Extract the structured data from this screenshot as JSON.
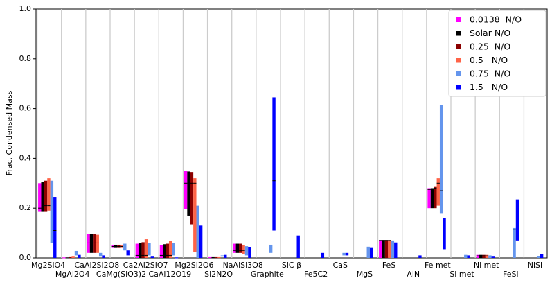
{
  "chart_data": {
    "type": "floating-bar",
    "ylabel": "Frac. Condensed Mass",
    "categories": [
      "Mg2SiO4",
      "MgAl2O4",
      "CaAl2Si2O8",
      "CaMg(SiO3)2",
      "Ca2Al2SiO7",
      "CaAl12O19",
      "Mg2Si2O6",
      "Si2N2O",
      "NaAlSi3O8",
      "Graphite",
      "SiC β",
      "Fe5C2",
      "CaS",
      "MgS",
      "FeS",
      "AlN",
      "Fe met",
      "Si met",
      "Ni met",
      "FeSi",
      "NiSi"
    ],
    "ylim": [
      0,
      1.0
    ],
    "yticks": [
      {
        "value": 0,
        "label": "0.0"
      },
      {
        "value": 0.2,
        "label": "0.2"
      },
      {
        "value": 0.4,
        "label": "0.4"
      },
      {
        "value": 0.6,
        "label": "0.6"
      },
      {
        "value": 0.8,
        "label": "0.8"
      },
      {
        "value": 1.0,
        "label": "1.0"
      }
    ],
    "grid": true,
    "legend": "upper right",
    "series": [
      {
        "name": "0.0138  N/O",
        "color": "#ff00ff",
        "low": [
          0.185,
          0,
          0.02,
          0.04,
          0,
          0,
          0.195,
          0,
          0.02,
          null,
          null,
          null,
          null,
          null,
          0,
          null,
          0.2,
          null,
          0,
          null,
          null
        ],
        "high": [
          0.3,
          0.002,
          0.097,
          0.053,
          0.057,
          0.052,
          0.35,
          0.003,
          0.057,
          null,
          null,
          null,
          null,
          null,
          0.072,
          null,
          0.28,
          null,
          0.012,
          null,
          null
        ],
        "mid": [
          0.2,
          null,
          0.06,
          0.046,
          0.01,
          0.01,
          0.3,
          null,
          0.03,
          null,
          null,
          null,
          null,
          null,
          0.07,
          null,
          0.275,
          null,
          0.008,
          null,
          null
        ]
      },
      {
        "name": "Solar N/O",
        "color": "#000000",
        "low": [
          0.185,
          0,
          0.02,
          0.04,
          0,
          0,
          0.17,
          0,
          0.02,
          null,
          null,
          null,
          null,
          null,
          0,
          null,
          0.2,
          null,
          0,
          null,
          null
        ],
        "high": [
          0.305,
          0.002,
          0.097,
          0.053,
          0.06,
          0.055,
          0.347,
          0.003,
          0.057,
          null,
          null,
          null,
          null,
          null,
          0.072,
          null,
          0.28,
          null,
          0.012,
          null,
          null
        ],
        "mid": [
          0.2,
          null,
          0.06,
          0.046,
          0.01,
          0.01,
          0.3,
          null,
          0.03,
          null,
          null,
          null,
          null,
          null,
          0.07,
          null,
          0.275,
          null,
          0.008,
          null,
          null
        ]
      },
      {
        "name": "0.25  N/O",
        "color": "#8b0000",
        "low": [
          0.185,
          0,
          0.02,
          0.04,
          0,
          0,
          0.135,
          0,
          0.02,
          null,
          null,
          null,
          null,
          null,
          0,
          null,
          0.2,
          null,
          0,
          null,
          null
        ],
        "high": [
          0.31,
          0.003,
          0.097,
          0.053,
          0.063,
          0.057,
          0.345,
          0.003,
          0.057,
          null,
          null,
          null,
          null,
          null,
          0.072,
          null,
          0.285,
          null,
          0.012,
          null,
          null
        ],
        "mid": [
          0.21,
          null,
          0.06,
          0.046,
          0.01,
          0.01,
          0.3,
          null,
          0.03,
          null,
          null,
          null,
          null,
          null,
          0.07,
          null,
          0.28,
          null,
          0.008,
          null,
          null
        ]
      },
      {
        "name": "0.5   N/O",
        "color": "#ff6347",
        "low": [
          0.19,
          0,
          0.02,
          0.04,
          0,
          0,
          0.025,
          0,
          0.015,
          null,
          null,
          null,
          null,
          null,
          0,
          null,
          0.21,
          null,
          0,
          null,
          null
        ],
        "high": [
          0.32,
          0.005,
          0.093,
          0.053,
          0.075,
          0.067,
          0.32,
          0.003,
          0.053,
          null,
          null,
          null,
          null,
          null,
          0.072,
          null,
          0.32,
          null,
          0.012,
          null,
          null
        ],
        "mid": [
          0.21,
          null,
          0.06,
          0.046,
          0.01,
          0.01,
          0.3,
          null,
          0.03,
          null,
          null,
          null,
          null,
          null,
          0.07,
          null,
          0.3,
          null,
          0.008,
          null,
          null
        ]
      },
      {
        "name": "0.75  N/O",
        "color": "#6495ed",
        "low": [
          0.06,
          0.01,
          0.005,
          0.03,
          0.01,
          0.01,
          0,
          0.005,
          0.01,
          0.02,
          null,
          null,
          0.01,
          0,
          0,
          null,
          0.18,
          0,
          0,
          0,
          0
        ],
        "high": [
          0.31,
          0.028,
          0.02,
          0.057,
          0.06,
          0.06,
          0.21,
          0.01,
          0.047,
          0.053,
          null,
          null,
          0.02,
          0.045,
          0.07,
          null,
          0.615,
          0.012,
          0.01,
          0.12,
          0.008
        ],
        "mid": [
          null,
          null,
          null,
          null,
          null,
          null,
          null,
          null,
          null,
          null,
          null,
          null,
          null,
          null,
          null,
          null,
          0.27,
          null,
          null,
          0.115,
          null
        ]
      },
      {
        "name": "1.5   N/O",
        "color": "#0000ff",
        "low": [
          0,
          0,
          0,
          0.01,
          0,
          0,
          0,
          0,
          0,
          0.11,
          0,
          0,
          0.01,
          0,
          0,
          0,
          0.035,
          0,
          0,
          0.07,
          0
        ],
        "high": [
          0.245,
          0.012,
          0.01,
          0.03,
          0.005,
          0.002,
          0.13,
          0.012,
          0.043,
          0.645,
          0.09,
          0.02,
          0.02,
          0.04,
          0.062,
          0.01,
          0.16,
          0.01,
          0.005,
          0.235,
          0.015
        ],
        "mid": [
          0.11,
          null,
          null,
          null,
          null,
          null,
          null,
          null,
          null,
          0.31,
          null,
          null,
          null,
          null,
          null,
          null,
          null,
          null,
          null,
          null,
          null
        ]
      }
    ]
  }
}
